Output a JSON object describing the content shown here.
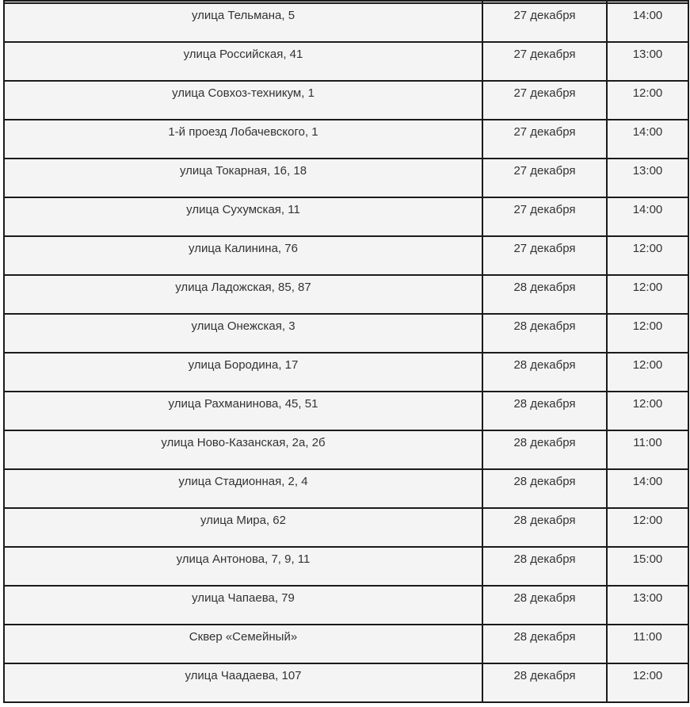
{
  "colors": {
    "cell_background": "#f4f4f4",
    "border": "#1b1b1b",
    "text": "#333333",
    "page_background": "#ffffff"
  },
  "table": {
    "column_keys": [
      "address",
      "date",
      "time"
    ],
    "rows": [
      {
        "address": "улица Тельмана, 5",
        "date": "27 декабря",
        "time": "14:00"
      },
      {
        "address": "улица Российская, 41",
        "date": "27 декабря",
        "time": "13:00"
      },
      {
        "address": "улица Совхоз-техникум, 1",
        "date": "27 декабря",
        "time": "12:00"
      },
      {
        "address": "1-й проезд Лобачевского, 1",
        "date": "27 декабря",
        "time": "14:00"
      },
      {
        "address": "улица Токарная, 16, 18",
        "date": "27 декабря",
        "time": "13:00"
      },
      {
        "address": "улица Сухумская, 11",
        "date": "27 декабря",
        "time": "14:00"
      },
      {
        "address": "улица Калинина, 76",
        "date": "27 декабря",
        "time": "12:00"
      },
      {
        "address": "улица Ладожская, 85, 87",
        "date": "28 декабря",
        "time": "12:00"
      },
      {
        "address": "улица Онежская, 3",
        "date": "28 декабря",
        "time": "12:00"
      },
      {
        "address": "улица Бородина, 17",
        "date": "28 декабря",
        "time": "12:00"
      },
      {
        "address": "улица Рахманинова, 45, 51",
        "date": "28 декабря",
        "time": "12:00"
      },
      {
        "address": "улица Ново-Казанская, 2а, 2б",
        "date": "28 декабря",
        "time": "11:00"
      },
      {
        "address": "улица Стадионная, 2, 4",
        "date": "28 декабря",
        "time": "14:00"
      },
      {
        "address": "улица Мира, 62",
        "date": "28 декабря",
        "time": "12:00"
      },
      {
        "address": "улица Антонова, 7, 9, 11",
        "date": "28 декабря",
        "time": "15:00"
      },
      {
        "address": "улица Чапаева, 79",
        "date": "28 декабря",
        "time": "13:00"
      },
      {
        "address": "Сквер «Семейный»",
        "date": "28 декабря",
        "time": "11:00"
      },
      {
        "address": "улица Чаадаева, 107",
        "date": "28 декабря",
        "time": "12:00"
      }
    ]
  }
}
